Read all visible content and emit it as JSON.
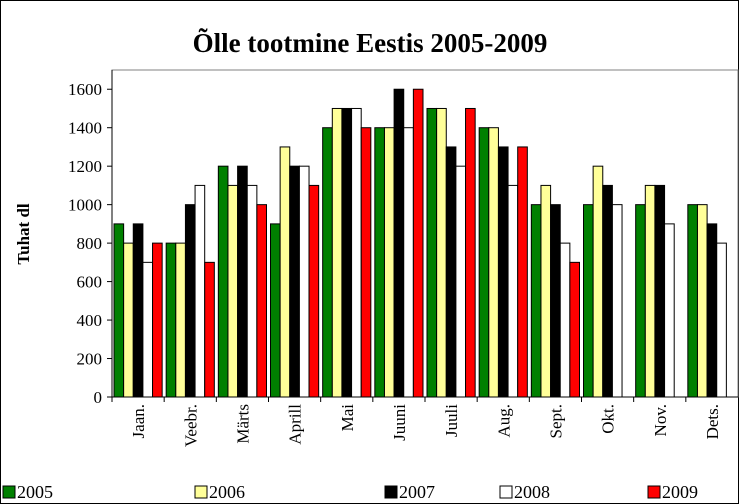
{
  "chart_data": {
    "type": "bar",
    "title": "Õlle tootmine Eestis 2005-2009",
    "ylabel": "Tuhat dl",
    "categories": [
      "Jaan.",
      "Veebr.",
      "Märts",
      "Aprill",
      "Mai",
      "Juuni",
      "Juuli",
      "Aug.",
      "Sept.",
      "Okt.",
      "Nov.",
      "Dets."
    ],
    "series": [
      {
        "name": "2005",
        "color": "#008000",
        "values": [
          900,
          800,
          1200,
          900,
          1400,
          1400,
          1500,
          1400,
          1000,
          1000,
          1000,
          1000
        ]
      },
      {
        "name": "2006",
        "color": "#ffff99",
        "values": [
          800,
          800,
          1100,
          1300,
          1500,
          1400,
          1500,
          1400,
          1100,
          1200,
          1100,
          1000
        ]
      },
      {
        "name": "2007",
        "color": "#000000",
        "values": [
          900,
          1000,
          1200,
          1200,
          1500,
          1600,
          1300,
          1300,
          1000,
          1100,
          1100,
          900
        ]
      },
      {
        "name": "2008",
        "color": "#ffffff",
        "values": [
          700,
          1100,
          1100,
          1200,
          1500,
          1400,
          1200,
          1100,
          800,
          1000,
          900,
          800
        ]
      },
      {
        "name": "2009",
        "color": "#ff0000",
        "values": [
          800,
          700,
          1000,
          1100,
          1400,
          1600,
          1500,
          1300,
          700,
          null,
          null,
          null
        ]
      }
    ],
    "ylim": [
      0,
      1700
    ],
    "yticks": [
      0,
      200,
      400,
      600,
      800,
      1000,
      1200,
      1400,
      1600
    ],
    "grid": false,
    "legend": "bottom"
  }
}
